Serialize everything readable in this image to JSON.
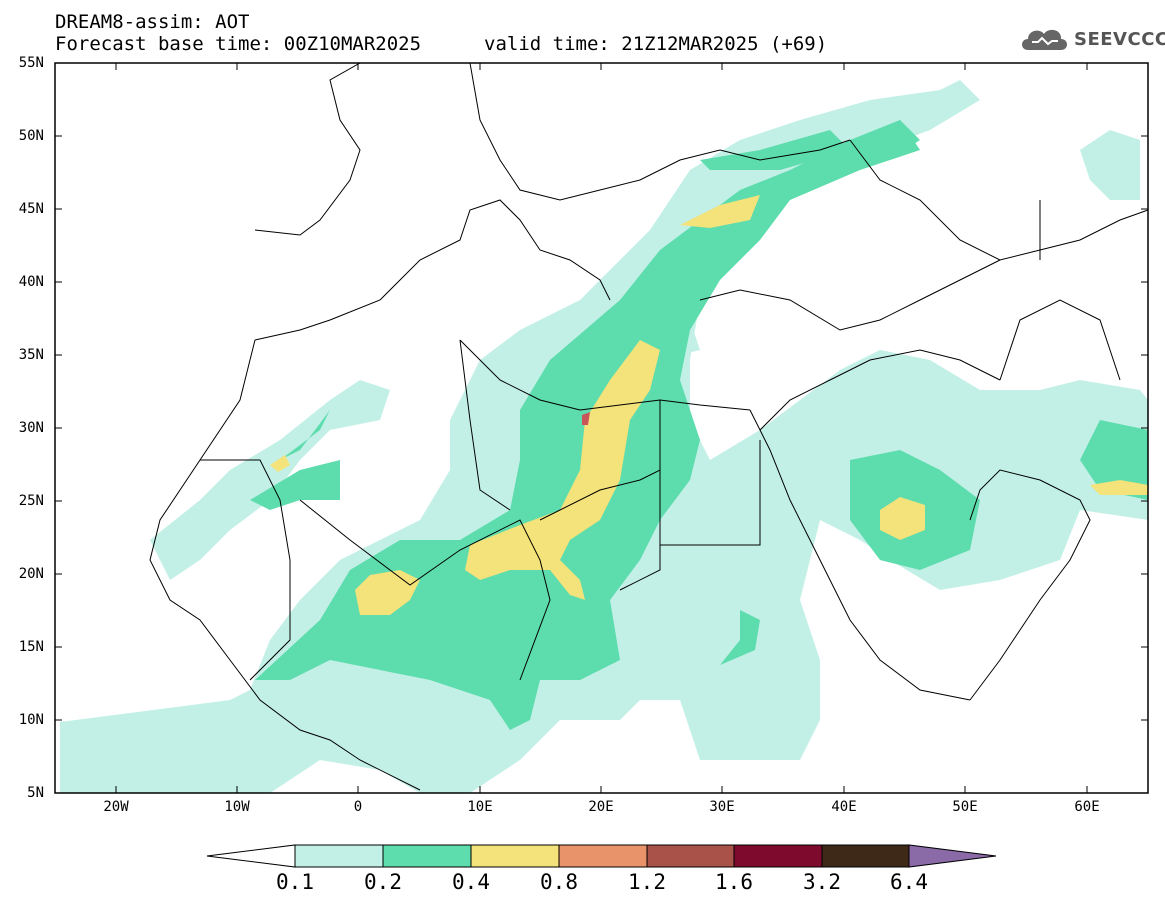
{
  "header": {
    "title_line1": "DREAM8-assim: AOT",
    "title_line2": "Forecast base time: 00Z10MAR2025",
    "valid_time": "valid time: 21Z12MAR2025 (+69)"
  },
  "logo": {
    "text": "SEEVCCC",
    "icon": "cloud-icon"
  },
  "axes": {
    "lat_labels": [
      "55N",
      "50N",
      "45N",
      "40N",
      "35N",
      "30N",
      "25N",
      "20N",
      "15N",
      "10N",
      "5N"
    ],
    "lon_labels": [
      "20W",
      "10W",
      "0",
      "10E",
      "20E",
      "30E",
      "40E",
      "50E",
      "60E"
    ]
  },
  "colorbar": {
    "labels": [
      "0.1",
      "0.2",
      "0.4",
      "0.8",
      "1.2",
      "1.6",
      "3.2",
      "6.4"
    ],
    "colors": [
      "#ffffff",
      "#c2f0e6",
      "#5ddcae",
      "#f4e27a",
      "#e8936a",
      "#a9524a",
      "#7e0a2e",
      "#3e2818",
      "#8b6aa8"
    ]
  },
  "map_colors": {
    "light": "#c2f0e6",
    "medium": "#5ddcae",
    "yellow": "#f4e27a",
    "orange": "#e8936a",
    "red": "#c8555a",
    "border": "#000000"
  }
}
